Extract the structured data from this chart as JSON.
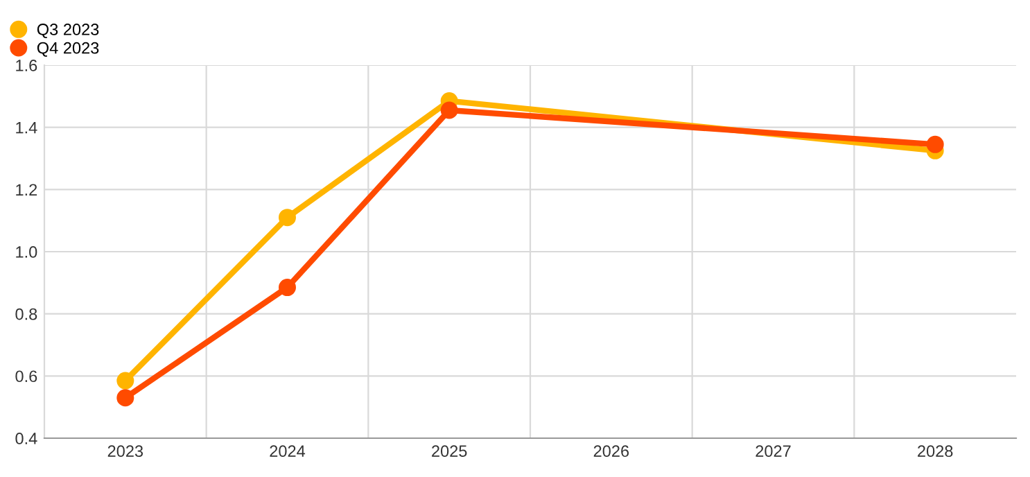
{
  "chart_data": {
    "type": "line",
    "categories": [
      "2023",
      "2024",
      "2025",
      "2026",
      "2027",
      "2028"
    ],
    "series": [
      {
        "name": "Q3 2023",
        "color": "#ffb400",
        "values": [
          0.585,
          1.11,
          1.485,
          null,
          null,
          1.325
        ]
      },
      {
        "name": "Q4 2023",
        "color": "#ff4b00",
        "values": [
          0.53,
          0.885,
          1.455,
          null,
          null,
          1.345
        ]
      }
    ],
    "ylim": [
      0.4,
      1.6
    ],
    "yticks": [
      0.4,
      0.6,
      0.8,
      {
        "value": 1,
        "label": "1.0"
      },
      1.2,
      1.4,
      1.6
    ],
    "grid": true,
    "legend": "top left",
    "marker": "circle",
    "line_style": "solid"
  }
}
